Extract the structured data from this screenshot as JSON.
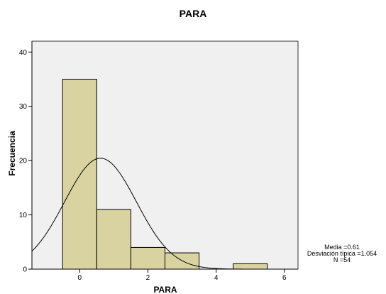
{
  "chart_data": {
    "type": "bar",
    "title": "PARA",
    "xlabel": "PARA",
    "ylabel": "Frecuencia",
    "bins": [
      {
        "x0": -0.5,
        "x1": 0.5,
        "count": 35
      },
      {
        "x0": 0.5,
        "x1": 1.5,
        "count": 11
      },
      {
        "x0": 1.5,
        "x1": 2.5,
        "count": 4
      },
      {
        "x0": 2.5,
        "x1": 3.5,
        "count": 3
      },
      {
        "x0": 4.5,
        "x1": 5.5,
        "count": 1
      }
    ],
    "xlim": [
      -1.4,
      6.4
    ],
    "ylim": [
      0,
      42
    ],
    "xticks": [
      0,
      2,
      4,
      6
    ],
    "yticks": [
      0,
      10,
      20,
      30,
      40
    ],
    "xtick_labels": [
      "0",
      "2",
      "4",
      "6"
    ],
    "ytick_labels": [
      "0",
      "10",
      "20",
      "30",
      "40"
    ],
    "normal_curve": {
      "mean": 0.61,
      "sd": 1.054,
      "n": 54,
      "bin_width": 1
    },
    "stats": {
      "mean_label": "Media =0.61",
      "sd_label": "Desviación típica =1.054",
      "n_label": "N =54"
    },
    "colors": {
      "bar": "#d8d3a0",
      "plot_background": "#f0f0f0"
    },
    "grid": false
  }
}
